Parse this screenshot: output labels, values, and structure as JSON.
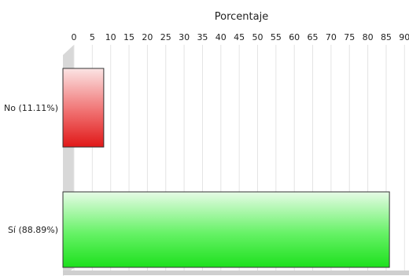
{
  "chart_data": {
    "type": "bar",
    "orientation": "horizontal",
    "xlabel": "Porcentaje",
    "xlim": [
      0,
      90
    ],
    "x_ticks": [
      "0",
      "5",
      "10",
      "15",
      "20",
      "25",
      "30",
      "35",
      "40",
      "45",
      "50",
      "55",
      "60",
      "65",
      "70",
      "75",
      "80",
      "85",
      "90"
    ],
    "categories": [
      "No (11.11%)",
      "Sí (88.89%)"
    ],
    "values": [
      11.11,
      88.89
    ],
    "bar_colors": [
      "#e8252a",
      "#2de82d"
    ],
    "grid": true,
    "legend": "none"
  }
}
